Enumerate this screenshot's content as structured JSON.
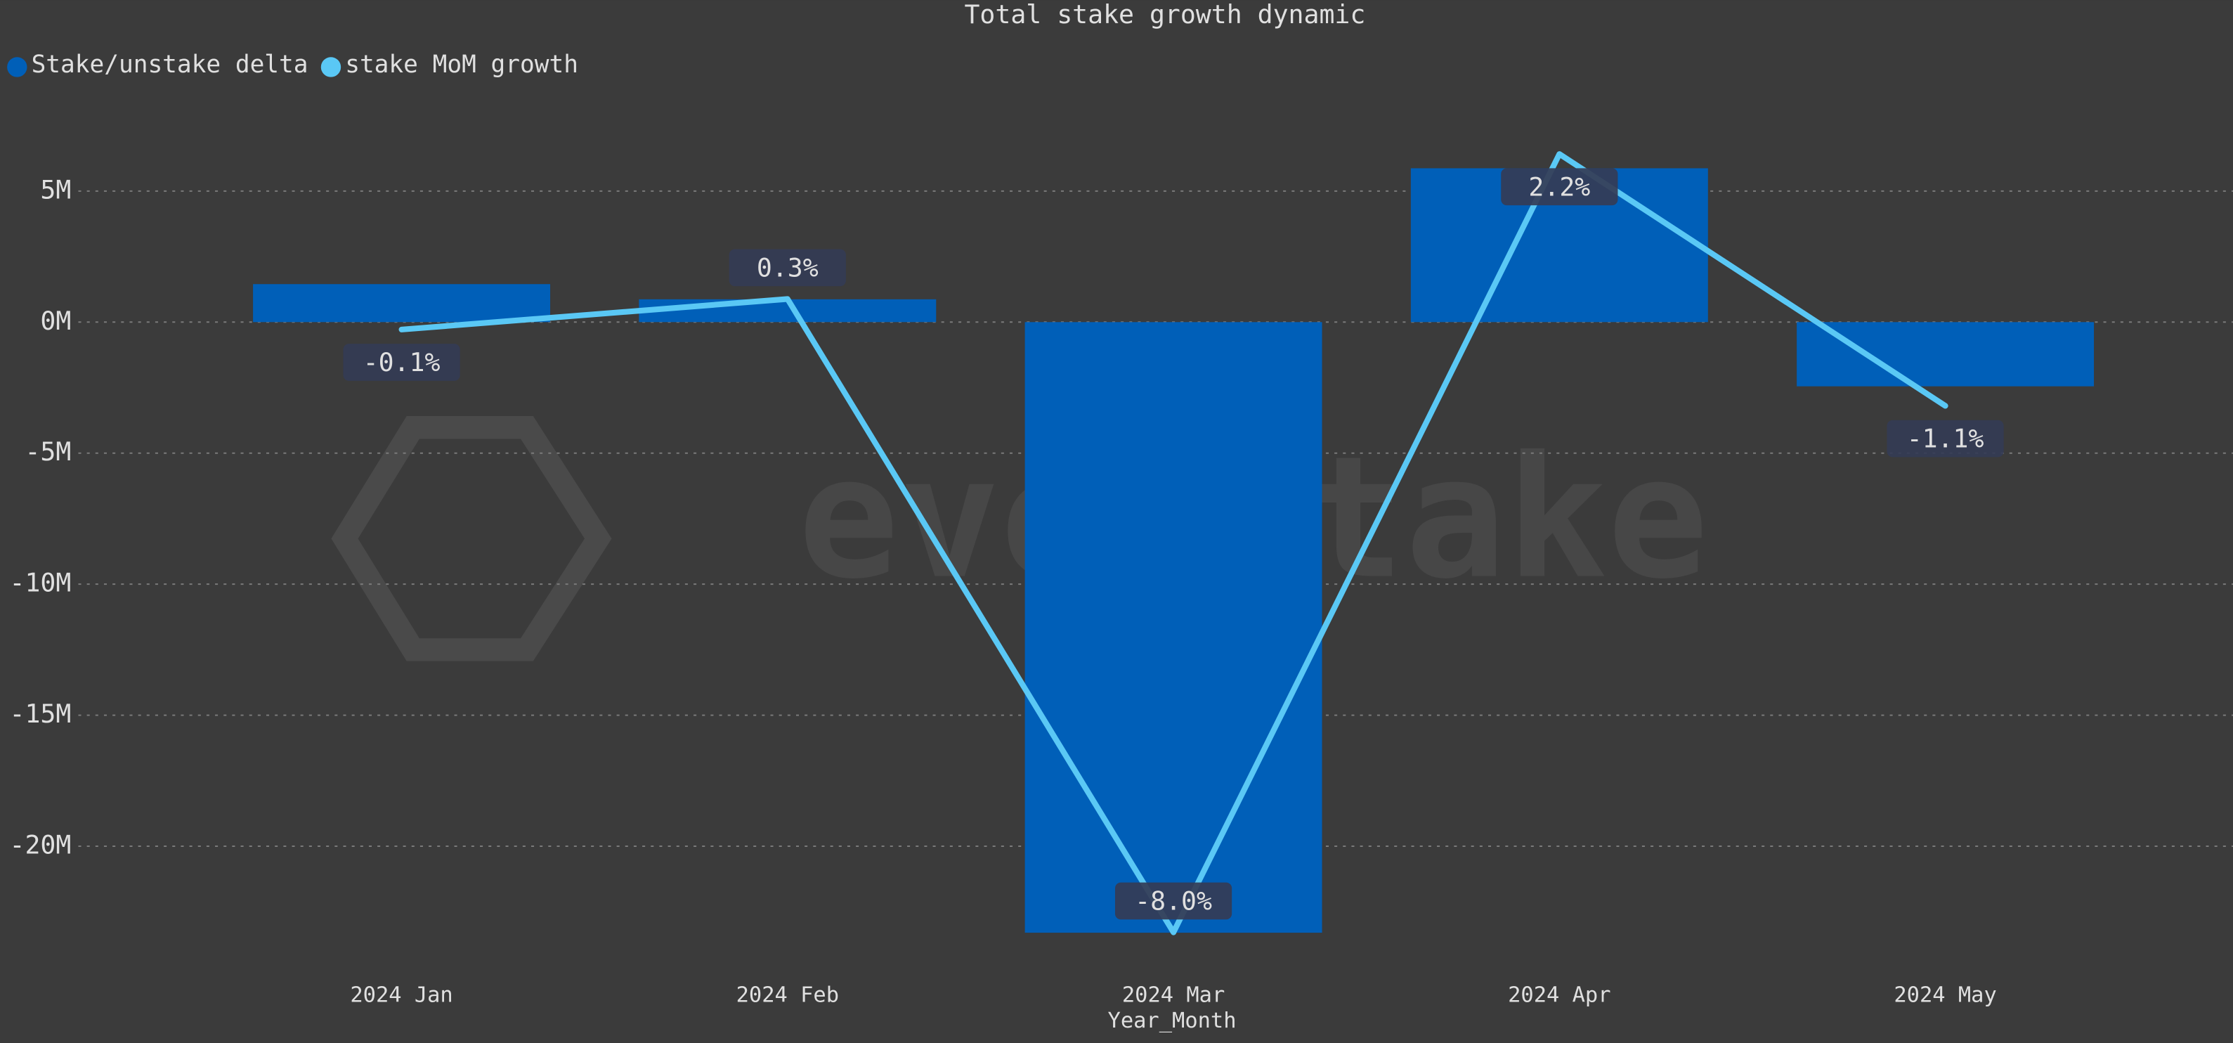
{
  "chart_data": {
    "type": "bar-line",
    "title": "Total stake growth dynamic",
    "x_label": "Year_Month",
    "watermark": "everstake",
    "categories": [
      "2024 Jan",
      "2024 Feb",
      "2024 Mar",
      "2024 Apr",
      "2024 May"
    ],
    "series": [
      {
        "name": "Stake/unstake delta",
        "type": "bar",
        "color": "#005fb8",
        "values": [
          1450000,
          870000,
          -23300000,
          5870000,
          -2450000
        ]
      },
      {
        "name": "stake MoM growth",
        "type": "line",
        "axis": "y2",
        "color": "#5ac8f5",
        "values": [
          -0.1,
          0.3,
          -8.0,
          2.2,
          -1.1
        ],
        "value_labels": [
          "-0.1%",
          "0.3%",
          "-8.0%",
          "2.2%",
          "-1.1%"
        ]
      }
    ],
    "ylim": [
      -24100000,
      6850000
    ],
    "yticks": [
      {
        "value": 5000000,
        "label": "5M"
      },
      {
        "value": 0,
        "label": "0M"
      },
      {
        "value": -5000000,
        "label": "-5M"
      },
      {
        "value": -10000000,
        "label": "-10M"
      },
      {
        "value": -15000000,
        "label": "-15M"
      },
      {
        "value": -20000000,
        "label": "-20M"
      }
    ],
    "y2lim": [
      -8.28,
      2.35
    ],
    "grid": true,
    "legend": "top-left"
  }
}
